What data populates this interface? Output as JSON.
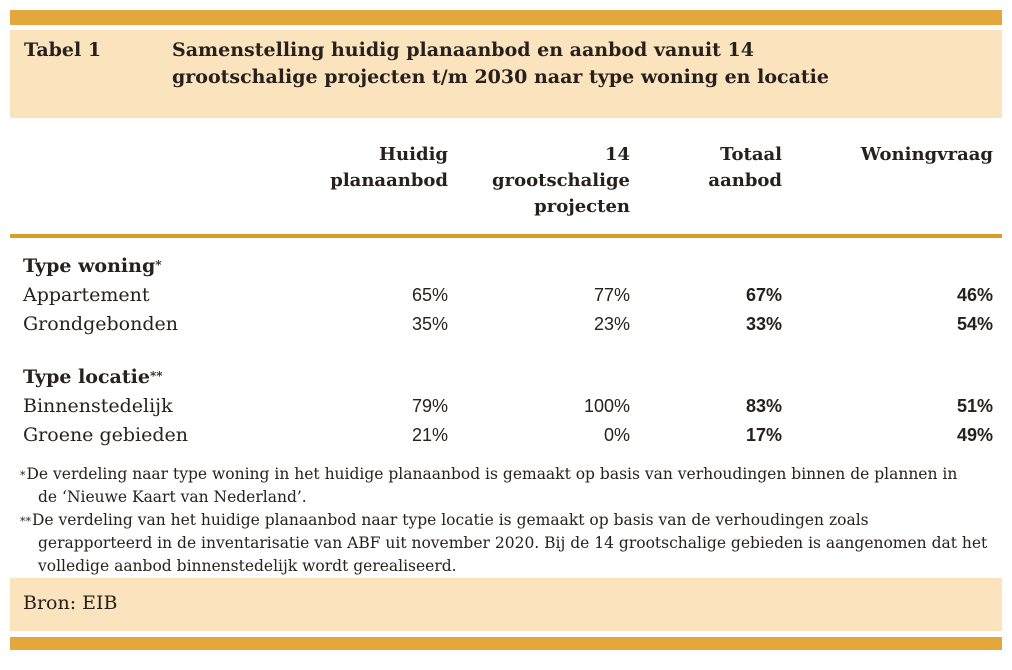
{
  "caption": {
    "label": "Tabel 1",
    "title": "Samenstelling huidig planaanbod en aanbod vanuit 14 grootschalige projecten t/m 2030 naar type woning en locatie"
  },
  "table": {
    "columns": [
      {
        "label": "Huidig planaanbod",
        "lines": [
          "Huidig",
          "planaanbod"
        ]
      },
      {
        "label": "14 grootschalige projecten",
        "lines": [
          "14",
          "grootschalige",
          "projecten"
        ]
      },
      {
        "label": "Totaal aanbod",
        "lines": [
          "Totaal",
          "aanbod"
        ]
      },
      {
        "label": "Woningvraag",
        "lines": [
          "Woningvraag"
        ]
      }
    ],
    "sections": [
      {
        "header": "Type woning",
        "marker": "*",
        "rows": [
          {
            "label": "Appartement",
            "values": [
              "65%",
              "77%",
              "67%",
              "46%"
            ]
          },
          {
            "label": "Grondgebonden",
            "values": [
              "35%",
              "23%",
              "33%",
              "54%"
            ]
          }
        ]
      },
      {
        "header": "Type locatie",
        "marker": "**",
        "rows": [
          {
            "label": "Binnenstedelijk",
            "values": [
              "79%",
              "100%",
              "83%",
              "51%"
            ]
          },
          {
            "label": "Groene gebieden",
            "values": [
              "21%",
              "0%",
              "17%",
              "49%"
            ]
          }
        ]
      }
    ]
  },
  "footnotes": [
    {
      "marker": "*",
      "lines": [
        "De verdeling naar type woning in het huidige planaanbod is gemaakt op basis van verhoudingen binnen de plannen in",
        "de ‘Nieuwe Kaart van Nederland’."
      ]
    },
    {
      "marker": "**",
      "lines": [
        "De verdeling van het huidige planaanbod naar type locatie is gemaakt op basis van de verhoudingen zoals",
        "gerapporteerd in de inventarisatie van ABF uit november 2020. Bij de 14 grootschalige gebieden is aangenomen dat het",
        "volledige aanbod binnenstedelijk wordt gerealiseerd."
      ]
    }
  ],
  "source": {
    "text": "Bron: EIB"
  },
  "colors": {
    "accent_bar": "#e3a73c",
    "band_background": "#fbe3bd",
    "rule": "#d99c28",
    "text": "#26211c"
  }
}
